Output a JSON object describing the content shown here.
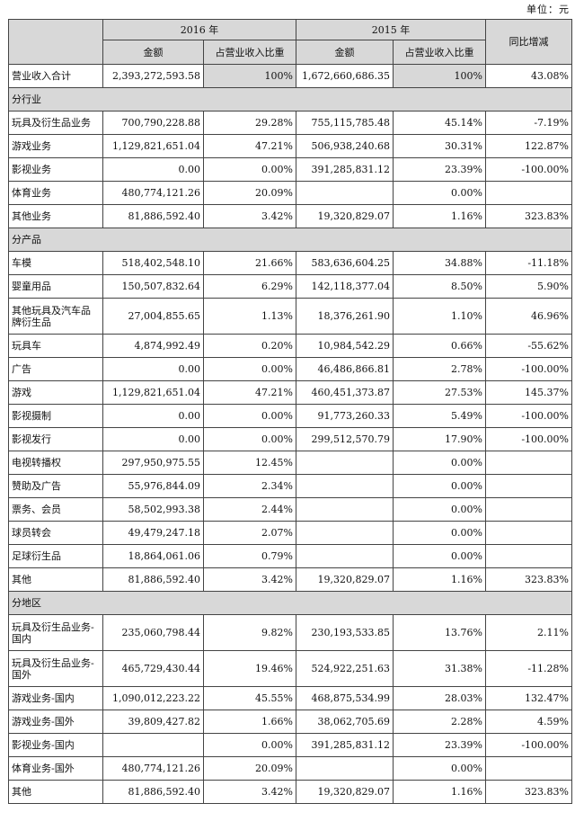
{
  "unit_label": "单位：元",
  "header": {
    "year_2016": "2016 年",
    "year_2015": "2015 年",
    "amount": "金额",
    "share": "占营业收入比重",
    "yoy": "同比增减"
  },
  "total_row": {
    "label": "营业收入合计",
    "amt2016": "2,393,272,593.58",
    "pct2016": "100%",
    "amt2015": "1,672,660,686.35",
    "pct2015": "100%",
    "yoy": "43.08%"
  },
  "sections": [
    {
      "title": "分行业",
      "rows": [
        {
          "label": "玩具及衍生品业务",
          "amt2016": "700,790,228.88",
          "pct2016": "29.28%",
          "amt2015": "755,115,785.48",
          "pct2015": "45.14%",
          "yoy": "-7.19%"
        },
        {
          "label": "游戏业务",
          "amt2016": "1,129,821,651.04",
          "pct2016": "47.21%",
          "amt2015": "506,938,240.68",
          "pct2015": "30.31%",
          "yoy": "122.87%"
        },
        {
          "label": "影视业务",
          "amt2016": "0.00",
          "pct2016": "0.00%",
          "amt2015": "391,285,831.12",
          "pct2015": "23.39%",
          "yoy": "-100.00%"
        },
        {
          "label": "体育业务",
          "amt2016": "480,774,121.26",
          "pct2016": "20.09%",
          "amt2015": "",
          "pct2015": "0.00%",
          "yoy": ""
        },
        {
          "label": "其他业务",
          "amt2016": "81,886,592.40",
          "pct2016": "3.42%",
          "amt2015": "19,320,829.07",
          "pct2015": "1.16%",
          "yoy": "323.83%"
        }
      ]
    },
    {
      "title": "分产品",
      "rows": [
        {
          "label": "车模",
          "amt2016": "518,402,548.10",
          "pct2016": "21.66%",
          "amt2015": "583,636,604.25",
          "pct2015": "34.88%",
          "yoy": "-11.18%"
        },
        {
          "label": "婴童用品",
          "amt2016": "150,507,832.64",
          "pct2016": "6.29%",
          "amt2015": "142,118,377.04",
          "pct2015": "8.50%",
          "yoy": "5.90%"
        },
        {
          "label": "其他玩具及汽车品牌衍生品",
          "amt2016": "27,004,855.65",
          "pct2016": "1.13%",
          "amt2015": "18,376,261.90",
          "pct2015": "1.10%",
          "yoy": "46.96%"
        },
        {
          "label": "玩具车",
          "amt2016": "4,874,992.49",
          "pct2016": "0.20%",
          "amt2015": "10,984,542.29",
          "pct2015": "0.66%",
          "yoy": "-55.62%"
        },
        {
          "label": "广告",
          "amt2016": "0.00",
          "pct2016": "0.00%",
          "amt2015": "46,486,866.81",
          "pct2015": "2.78%",
          "yoy": "-100.00%"
        },
        {
          "label": "游戏",
          "amt2016": "1,129,821,651.04",
          "pct2016": "47.21%",
          "amt2015": "460,451,373.87",
          "pct2015": "27.53%",
          "yoy": "145.37%"
        },
        {
          "label": "影视摄制",
          "amt2016": "0.00",
          "pct2016": "0.00%",
          "amt2015": "91,773,260.33",
          "pct2015": "5.49%",
          "yoy": "-100.00%"
        },
        {
          "label": "影视发行",
          "amt2016": "0.00",
          "pct2016": "0.00%",
          "amt2015": "299,512,570.79",
          "pct2015": "17.90%",
          "yoy": "-100.00%"
        },
        {
          "label": "电视转播权",
          "amt2016": "297,950,975.55",
          "pct2016": "12.45%",
          "amt2015": "",
          "pct2015": "0.00%",
          "yoy": ""
        },
        {
          "label": "赞助及广告",
          "amt2016": "55,976,844.09",
          "pct2016": "2.34%",
          "amt2015": "",
          "pct2015": "0.00%",
          "yoy": ""
        },
        {
          "label": "票务、会员",
          "amt2016": "58,502,993.38",
          "pct2016": "2.44%",
          "amt2015": "",
          "pct2015": "0.00%",
          "yoy": ""
        },
        {
          "label": "球员转会",
          "amt2016": "49,479,247.18",
          "pct2016": "2.07%",
          "amt2015": "",
          "pct2015": "0.00%",
          "yoy": ""
        },
        {
          "label": "足球衍生品",
          "amt2016": "18,864,061.06",
          "pct2016": "0.79%",
          "amt2015": "",
          "pct2015": "0.00%",
          "yoy": ""
        },
        {
          "label": "其他",
          "amt2016": "81,886,592.40",
          "pct2016": "3.42%",
          "amt2015": "19,320,829.07",
          "pct2015": "1.16%",
          "yoy": "323.83%"
        }
      ]
    },
    {
      "title": "分地区",
      "rows": [
        {
          "label": "玩具及衍生品业务-国内",
          "amt2016": "235,060,798.44",
          "pct2016": "9.82%",
          "amt2015": "230,193,533.85",
          "pct2015": "13.76%",
          "yoy": "2.11%"
        },
        {
          "label": "玩具及衍生品业务-国外",
          "amt2016": "465,729,430.44",
          "pct2016": "19.46%",
          "amt2015": "524,922,251.63",
          "pct2015": "31.38%",
          "yoy": "-11.28%"
        },
        {
          "label": "游戏业务-国内",
          "amt2016": "1,090,012,223.22",
          "pct2016": "45.55%",
          "amt2015": "468,875,534.99",
          "pct2015": "28.03%",
          "yoy": "132.47%"
        },
        {
          "label": "游戏业务-国外",
          "amt2016": "39,809,427.82",
          "pct2016": "1.66%",
          "amt2015": "38,062,705.69",
          "pct2015": "2.28%",
          "yoy": "4.59%"
        },
        {
          "label": "影视业务-国内",
          "amt2016": "",
          "pct2016": "0.00%",
          "amt2015": "391,285,831.12",
          "pct2015": "23.39%",
          "yoy": "-100.00%"
        },
        {
          "label": "体育业务-国外",
          "amt2016": "480,774,121.26",
          "pct2016": "20.09%",
          "amt2015": "",
          "pct2015": "0.00%",
          "yoy": ""
        },
        {
          "label": "其他",
          "amt2016": "81,886,592.40",
          "pct2016": "3.42%",
          "amt2015": "19,320,829.07",
          "pct2015": "1.16%",
          "yoy": "323.83%"
        }
      ]
    }
  ]
}
